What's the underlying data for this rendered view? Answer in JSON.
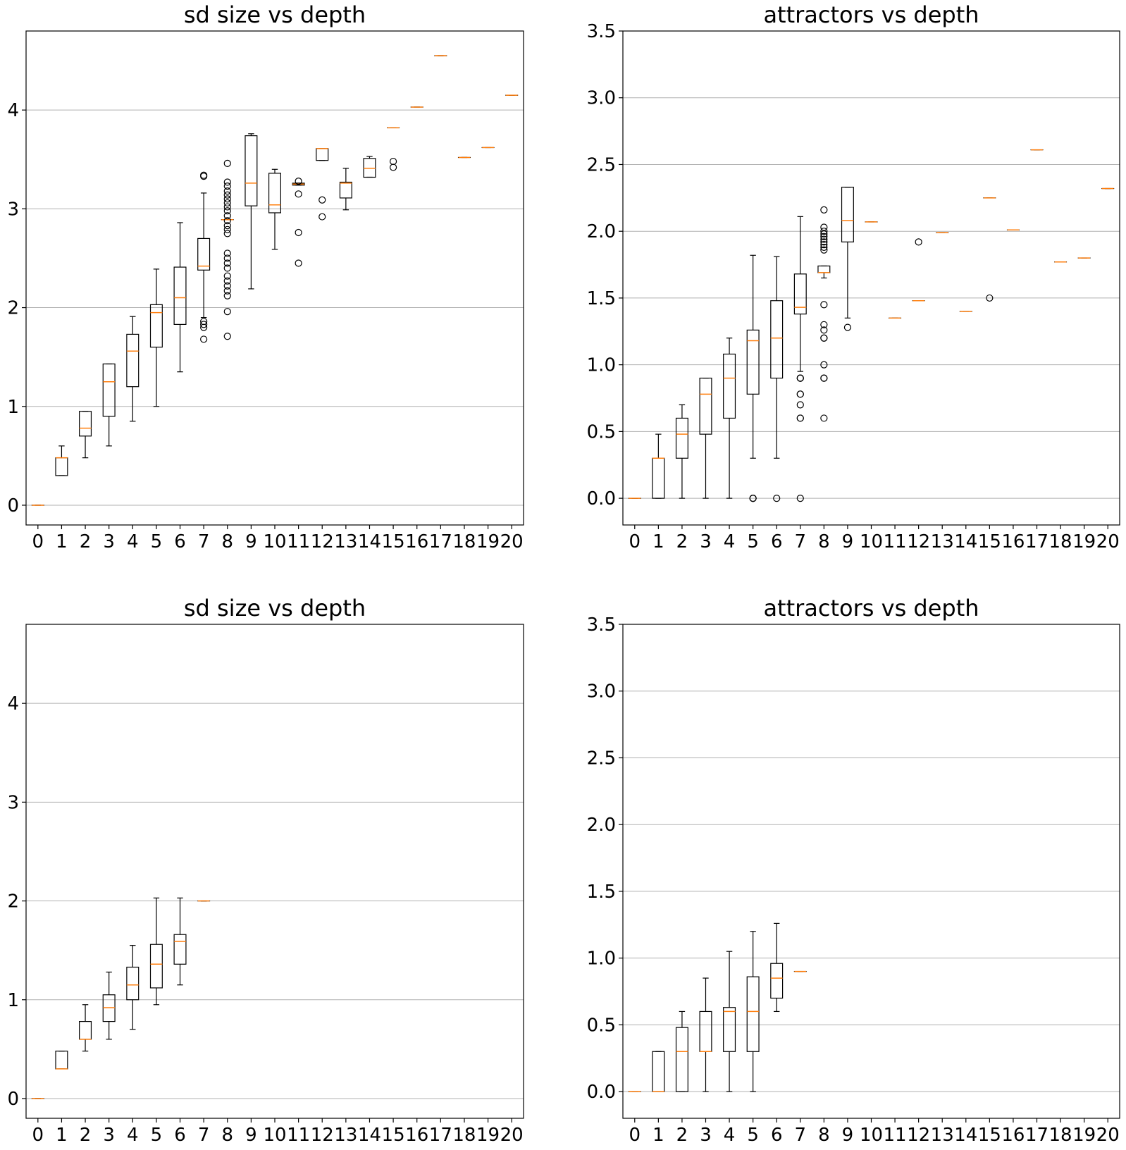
{
  "chart_data": [
    {
      "type": "box",
      "title": "sd size vs depth",
      "xlabel": "",
      "ylabel": "",
      "categories": [
        "0",
        "1",
        "2",
        "3",
        "4",
        "5",
        "6",
        "7",
        "8",
        "9",
        "10",
        "11",
        "12",
        "13",
        "14",
        "15",
        "16",
        "17",
        "18",
        "19",
        "20"
      ],
      "yticks": [
        "0",
        "1",
        "2",
        "3",
        "4"
      ],
      "ytick_values": [
        0,
        1,
        2,
        3,
        4
      ],
      "ylim": [
        -0.2,
        4.8
      ],
      "grid": "y",
      "boxes": [
        {
          "x": "0",
          "whislo": 0,
          "q1": 0,
          "med": 0,
          "q3": 0,
          "whishi": 0,
          "fliers": []
        },
        {
          "x": "1",
          "whislo": 0.3,
          "q1": 0.3,
          "med": 0.48,
          "q3": 0.48,
          "whishi": 0.6,
          "fliers": []
        },
        {
          "x": "2",
          "whislo": 0.48,
          "q1": 0.7,
          "med": 0.78,
          "q3": 0.95,
          "whishi": 0.95,
          "fliers": []
        },
        {
          "x": "3",
          "whislo": 0.6,
          "q1": 0.9,
          "med": 1.25,
          "q3": 1.43,
          "whishi": 1.43,
          "fliers": []
        },
        {
          "x": "4",
          "whislo": 0.85,
          "q1": 1.2,
          "med": 1.56,
          "q3": 1.73,
          "whishi": 1.91,
          "fliers": []
        },
        {
          "x": "5",
          "whislo": 1.0,
          "q1": 1.6,
          "med": 1.95,
          "q3": 2.03,
          "whishi": 2.39,
          "fliers": []
        },
        {
          "x": "6",
          "whislo": 1.35,
          "q1": 1.83,
          "med": 2.1,
          "q3": 2.41,
          "whishi": 2.86,
          "fliers": []
        },
        {
          "x": "7",
          "whislo": 1.9,
          "q1": 2.38,
          "med": 2.42,
          "q3": 2.7,
          "whishi": 3.16,
          "fliers": [
            1.68,
            1.8,
            1.83,
            1.86,
            3.33,
            3.34
          ]
        },
        {
          "x": "8",
          "whislo": 2.89,
          "q1": 2.89,
          "med": 2.89,
          "q3": 2.89,
          "whishi": 2.89,
          "fliers": [
            1.71,
            1.96,
            2.12,
            2.17,
            2.22,
            2.27,
            2.32,
            2.4,
            2.45,
            2.5,
            2.55,
            2.75,
            2.79,
            2.83,
            2.88,
            2.93,
            2.98,
            3.02,
            3.06,
            3.1,
            3.14,
            3.18,
            3.23,
            3.27,
            3.46
          ]
        },
        {
          "x": "9",
          "whislo": 2.19,
          "q1": 3.03,
          "med": 3.26,
          "q3": 3.74,
          "whishi": 3.76,
          "fliers": []
        },
        {
          "x": "10",
          "whislo": 2.59,
          "q1": 2.96,
          "med": 3.04,
          "q3": 3.36,
          "whishi": 3.4,
          "fliers": []
        },
        {
          "x": "11",
          "whislo": 3.24,
          "q1": 3.24,
          "med": 3.25,
          "q3": 3.26,
          "whishi": 3.26,
          "fliers": [
            2.45,
            2.76,
            3.15,
            3.28
          ]
        },
        {
          "x": "12",
          "whislo": 3.49,
          "q1": 3.49,
          "med": 3.61,
          "q3": 3.61,
          "whishi": 3.61,
          "fliers": [
            2.92,
            3.09
          ]
        },
        {
          "x": "13",
          "whislo": 2.99,
          "q1": 3.11,
          "med": 3.26,
          "q3": 3.27,
          "whishi": 3.41,
          "fliers": []
        },
        {
          "x": "14",
          "whislo": 3.32,
          "q1": 3.32,
          "med": 3.41,
          "q3": 3.51,
          "whishi": 3.53,
          "fliers": []
        },
        {
          "x": "15",
          "whislo": 3.82,
          "q1": 3.82,
          "med": 3.82,
          "q3": 3.82,
          "whishi": 3.82,
          "fliers": [
            3.42,
            3.48
          ]
        },
        {
          "x": "16",
          "whislo": 4.03,
          "q1": 4.03,
          "med": 4.03,
          "q3": 4.03,
          "whishi": 4.03,
          "fliers": []
        },
        {
          "x": "17",
          "whislo": 4.55,
          "q1": 4.55,
          "med": 4.55,
          "q3": 4.55,
          "whishi": 4.55,
          "fliers": []
        },
        {
          "x": "18",
          "whislo": 3.52,
          "q1": 3.52,
          "med": 3.52,
          "q3": 3.52,
          "whishi": 3.52,
          "fliers": []
        },
        {
          "x": "19",
          "whislo": 3.62,
          "q1": 3.62,
          "med": 3.62,
          "q3": 3.62,
          "whishi": 3.62,
          "fliers": []
        },
        {
          "x": "20",
          "whislo": 4.15,
          "q1": 4.15,
          "med": 4.15,
          "q3": 4.15,
          "whishi": 4.15,
          "fliers": []
        }
      ]
    },
    {
      "type": "box",
      "title": "attractors vs depth",
      "xlabel": "",
      "ylabel": "",
      "categories": [
        "0",
        "1",
        "2",
        "3",
        "4",
        "5",
        "6",
        "7",
        "8",
        "9",
        "10",
        "11",
        "12",
        "13",
        "14",
        "15",
        "16",
        "17",
        "18",
        "19",
        "20"
      ],
      "yticks": [
        "0.0",
        "0.5",
        "1.0",
        "1.5",
        "2.0",
        "2.5",
        "3.0",
        "3.5"
      ],
      "ytick_values": [
        0,
        0.5,
        1,
        1.5,
        2,
        2.5,
        3,
        3.5
      ],
      "ylim": [
        -0.2,
        3.5
      ],
      "grid": "y",
      "boxes": [
        {
          "x": "0",
          "whislo": 0,
          "q1": 0,
          "med": 0,
          "q3": 0,
          "whishi": 0,
          "fliers": []
        },
        {
          "x": "1",
          "whislo": 0,
          "q1": 0,
          "med": 0.3,
          "q3": 0.3,
          "whishi": 0.48,
          "fliers": []
        },
        {
          "x": "2",
          "whislo": 0,
          "q1": 0.3,
          "med": 0.48,
          "q3": 0.6,
          "whishi": 0.7,
          "fliers": []
        },
        {
          "x": "3",
          "whislo": 0,
          "q1": 0.48,
          "med": 0.78,
          "q3": 0.9,
          "whishi": 0.9,
          "fliers": []
        },
        {
          "x": "4",
          "whislo": 0,
          "q1": 0.6,
          "med": 0.9,
          "q3": 1.08,
          "whishi": 1.2,
          "fliers": []
        },
        {
          "x": "5",
          "whislo": 0.3,
          "q1": 0.78,
          "med": 1.18,
          "q3": 1.26,
          "whishi": 1.82,
          "fliers": [
            0,
            0,
            0
          ]
        },
        {
          "x": "6",
          "whislo": 0.3,
          "q1": 0.9,
          "med": 1.2,
          "q3": 1.48,
          "whishi": 1.81,
          "fliers": [
            0
          ]
        },
        {
          "x": "7",
          "whislo": 0.95,
          "q1": 1.38,
          "med": 1.43,
          "q3": 1.68,
          "whishi": 2.11,
          "fliers": [
            0,
            0.6,
            0.6,
            0.7,
            0.78,
            0.78,
            0.9,
            0.9,
            0.9
          ]
        },
        {
          "x": "8",
          "whislo": 1.65,
          "q1": 1.69,
          "med": 1.69,
          "q3": 1.74,
          "whishi": 1.74,
          "fliers": [
            0.6,
            0.9,
            0.9,
            1.0,
            1.2,
            1.2,
            1.26,
            1.3,
            1.45,
            1.86,
            1.88,
            1.9,
            1.92,
            1.94,
            1.96,
            1.98,
            2.0,
            2.03,
            2.16
          ]
        },
        {
          "x": "9",
          "whislo": 1.35,
          "q1": 1.92,
          "med": 2.08,
          "q3": 2.33,
          "whishi": 2.33,
          "fliers": [
            1.28
          ]
        },
        {
          "x": "10",
          "whislo": 2.07,
          "q1": 2.07,
          "med": 2.07,
          "q3": 2.07,
          "whishi": 2.07,
          "fliers": []
        },
        {
          "x": "11",
          "whislo": 1.35,
          "q1": 1.35,
          "med": 1.35,
          "q3": 1.35,
          "whishi": 1.35,
          "fliers": []
        },
        {
          "x": "12",
          "whislo": 1.48,
          "q1": 1.48,
          "med": 1.48,
          "q3": 1.48,
          "whishi": 1.48,
          "fliers": [
            1.92
          ]
        },
        {
          "x": "13",
          "whislo": 1.99,
          "q1": 1.99,
          "med": 1.99,
          "q3": 1.99,
          "whishi": 1.99,
          "fliers": []
        },
        {
          "x": "14",
          "whislo": 1.4,
          "q1": 1.4,
          "med": 1.4,
          "q3": 1.4,
          "whishi": 1.4,
          "fliers": []
        },
        {
          "x": "15",
          "whislo": 2.25,
          "q1": 2.25,
          "med": 2.25,
          "q3": 2.25,
          "whishi": 2.25,
          "fliers": [
            1.5
          ]
        },
        {
          "x": "16",
          "whislo": 2.01,
          "q1": 2.01,
          "med": 2.01,
          "q3": 2.01,
          "whishi": 2.01,
          "fliers": []
        },
        {
          "x": "17",
          "whislo": 2.61,
          "q1": 2.61,
          "med": 2.61,
          "q3": 2.61,
          "whishi": 2.61,
          "fliers": []
        },
        {
          "x": "18",
          "whislo": 1.77,
          "q1": 1.77,
          "med": 1.77,
          "q3": 1.77,
          "whishi": 1.77,
          "fliers": []
        },
        {
          "x": "19",
          "whislo": 1.8,
          "q1": 1.8,
          "med": 1.8,
          "q3": 1.8,
          "whishi": 1.8,
          "fliers": []
        },
        {
          "x": "20",
          "whislo": 2.32,
          "q1": 2.32,
          "med": 2.32,
          "q3": 2.32,
          "whishi": 2.32,
          "fliers": []
        }
      ]
    },
    {
      "type": "box",
      "title": "sd size vs depth",
      "xlabel": "",
      "ylabel": "",
      "categories": [
        "0",
        "1",
        "2",
        "3",
        "4",
        "5",
        "6",
        "7",
        "8",
        "9",
        "10",
        "11",
        "12",
        "13",
        "14",
        "15",
        "16",
        "17",
        "18",
        "19",
        "20"
      ],
      "yticks": [
        "0",
        "1",
        "2",
        "3",
        "4"
      ],
      "ytick_values": [
        0,
        1,
        2,
        3,
        4
      ],
      "ylim": [
        -0.2,
        4.8
      ],
      "grid": "y",
      "boxes": [
        {
          "x": "0",
          "whislo": 0,
          "q1": 0,
          "med": 0,
          "q3": 0,
          "whishi": 0,
          "fliers": []
        },
        {
          "x": "1",
          "whislo": 0.3,
          "q1": 0.3,
          "med": 0.3,
          "q3": 0.48,
          "whishi": 0.48,
          "fliers": []
        },
        {
          "x": "2",
          "whislo": 0.48,
          "q1": 0.6,
          "med": 0.6,
          "q3": 0.78,
          "whishi": 0.95,
          "fliers": []
        },
        {
          "x": "3",
          "whislo": 0.6,
          "q1": 0.78,
          "med": 0.92,
          "q3": 1.05,
          "whishi": 1.28,
          "fliers": []
        },
        {
          "x": "4",
          "whislo": 0.7,
          "q1": 1.0,
          "med": 1.15,
          "q3": 1.33,
          "whishi": 1.55,
          "fliers": []
        },
        {
          "x": "5",
          "whislo": 0.95,
          "q1": 1.12,
          "med": 1.36,
          "q3": 1.56,
          "whishi": 2.03,
          "fliers": []
        },
        {
          "x": "6",
          "whislo": 1.15,
          "q1": 1.36,
          "med": 1.59,
          "q3": 1.66,
          "whishi": 2.03,
          "fliers": []
        },
        {
          "x": "7",
          "whislo": 2.0,
          "q1": 2.0,
          "med": 2.0,
          "q3": 2.0,
          "whishi": 2.0,
          "fliers": []
        }
      ]
    },
    {
      "type": "box",
      "title": "attractors vs depth",
      "xlabel": "",
      "ylabel": "",
      "categories": [
        "0",
        "1",
        "2",
        "3",
        "4",
        "5",
        "6",
        "7",
        "8",
        "9",
        "10",
        "11",
        "12",
        "13",
        "14",
        "15",
        "16",
        "17",
        "18",
        "19",
        "20"
      ],
      "yticks": [
        "0.0",
        "0.5",
        "1.0",
        "1.5",
        "2.0",
        "2.5",
        "3.0",
        "3.5"
      ],
      "ytick_values": [
        0,
        0.5,
        1,
        1.5,
        2,
        2.5,
        3,
        3.5
      ],
      "ylim": [
        -0.2,
        3.5
      ],
      "grid": "y",
      "boxes": [
        {
          "x": "0",
          "whislo": 0,
          "q1": 0,
          "med": 0,
          "q3": 0,
          "whishi": 0,
          "fliers": []
        },
        {
          "x": "1",
          "whislo": 0,
          "q1": 0,
          "med": 0,
          "q3": 0.3,
          "whishi": 0.3,
          "fliers": []
        },
        {
          "x": "2",
          "whislo": 0,
          "q1": 0,
          "med": 0.3,
          "q3": 0.48,
          "whishi": 0.6,
          "fliers": []
        },
        {
          "x": "3",
          "whislo": 0,
          "q1": 0.3,
          "med": 0.3,
          "q3": 0.6,
          "whishi": 0.85,
          "fliers": []
        },
        {
          "x": "4",
          "whislo": 0,
          "q1": 0.3,
          "med": 0.6,
          "q3": 0.63,
          "whishi": 1.05,
          "fliers": []
        },
        {
          "x": "5",
          "whislo": 0,
          "q1": 0.3,
          "med": 0.6,
          "q3": 0.86,
          "whishi": 1.2,
          "fliers": []
        },
        {
          "x": "6",
          "whislo": 0.6,
          "q1": 0.7,
          "med": 0.85,
          "q3": 0.96,
          "whishi": 1.26,
          "fliers": []
        },
        {
          "x": "7",
          "whislo": 0.9,
          "q1": 0.9,
          "med": 0.9,
          "q3": 0.9,
          "whishi": 0.9,
          "fliers": []
        }
      ]
    }
  ],
  "colors": {
    "box": "#000000",
    "median": "#ff7f0e",
    "grid": "#b0b0b0",
    "background": "#ffffff"
  }
}
